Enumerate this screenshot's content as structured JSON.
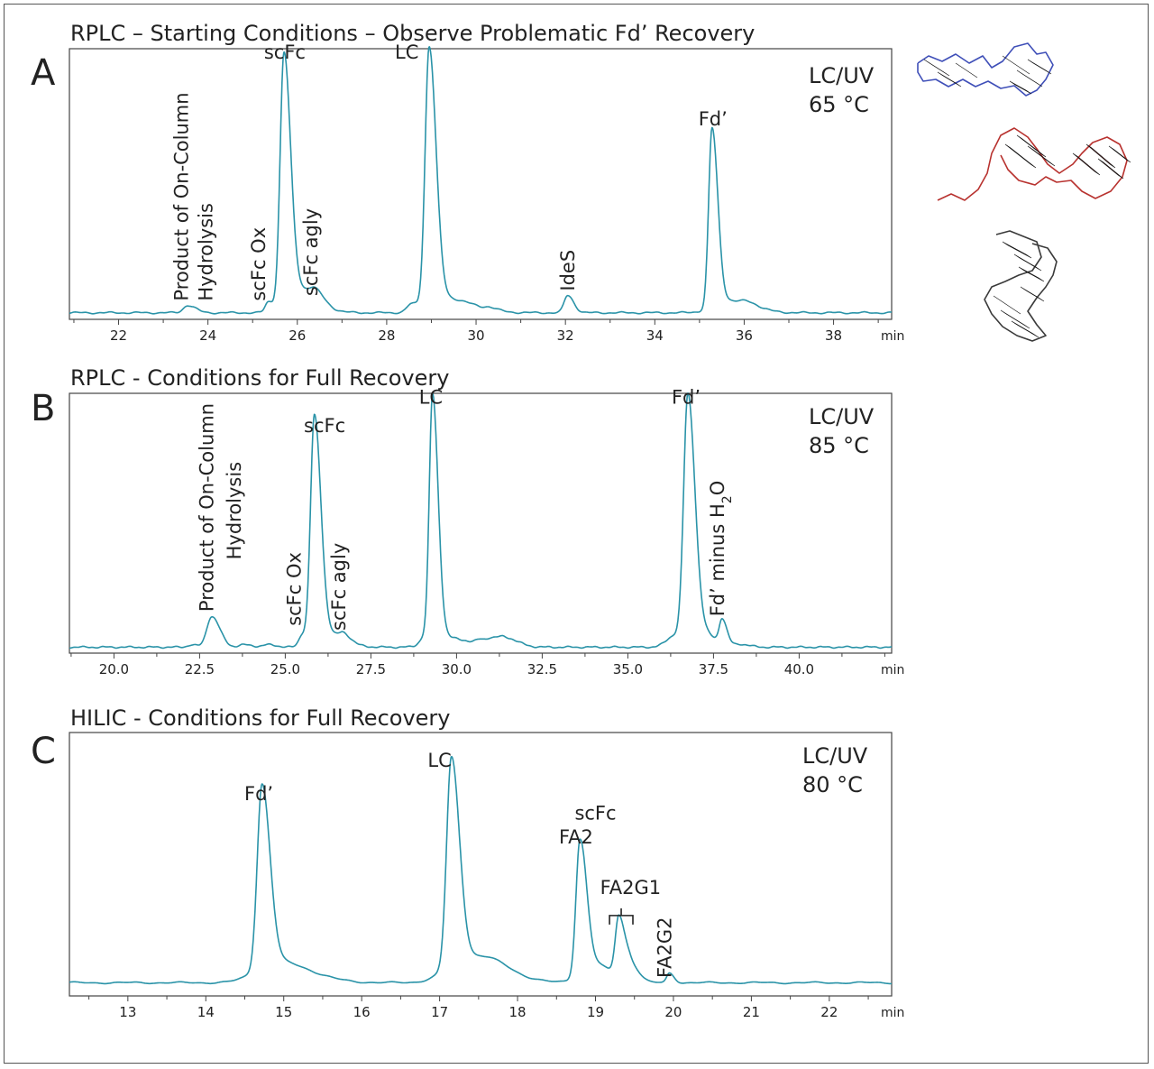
{
  "colors": {
    "trace": "#2a93a8",
    "axis": "#444444",
    "text": "#222222",
    "protein_blue": "#3f4fb8",
    "protein_red": "#b8322f",
    "protein_gray": "#3a3a3a"
  },
  "proteins": [
    {
      "name": "blue-ribbon"
    },
    {
      "name": "red-ribbon"
    },
    {
      "name": "gray-ribbon"
    }
  ],
  "chart_data": [
    {
      "type": "line",
      "panel": "A",
      "title": "RPLC – Starting Conditions – Observe Problematic Fd’ Recovery",
      "conditions": [
        "LC/UV",
        "65 °C"
      ],
      "xunit": "min",
      "xlim": [
        20.9,
        39.3
      ],
      "ylim": [
        0,
        100
      ],
      "ticks": [
        22,
        24,
        26,
        28,
        30,
        32,
        34,
        36,
        38
      ],
      "tick_labels": [
        "22",
        "24",
        "26",
        "28",
        "30",
        "32",
        "34",
        "36",
        "38"
      ],
      "baseline": 1.2,
      "peaks": [
        {
          "x": 23.55,
          "h": 3,
          "w": 0.1
        },
        {
          "x": 25.35,
          "h": 4,
          "w": 0.07
        },
        {
          "x": 25.7,
          "h": 100,
          "w": 0.085
        },
        {
          "x": 25.98,
          "h": 10,
          "w": 0.25
        },
        {
          "x": 26.4,
          "h": 4,
          "w": 0.12
        },
        {
          "x": 28.55,
          "h": 3,
          "w": 0.1
        },
        {
          "x": 28.95,
          "h": 104,
          "w": 0.09
        },
        {
          "x": 29.3,
          "h": 6,
          "w": 0.35
        },
        {
          "x": 30.3,
          "h": 1,
          "w": 0.1
        },
        {
          "x": 32.05,
          "h": 7,
          "w": 0.08
        },
        {
          "x": 35.28,
          "h": 72,
          "w": 0.075
        },
        {
          "x": 35.6,
          "h": 5,
          "w": 0.3
        },
        {
          "x": 36.1,
          "h": 1.5,
          "w": 0.15
        }
      ],
      "labels": [
        {
          "text": "scFc",
          "x": 25.72,
          "y": 104
        },
        {
          "text": "LC",
          "x": 28.45,
          "y": 104
        },
        {
          "text": "Fd’",
          "x": 35.3,
          "y": 77
        },
        {
          "text": "Product of On-Column",
          "x": 23.55,
          "y": 6,
          "rotate": true
        },
        {
          "text": "Hydrolysis",
          "x": 24.1,
          "y": 6,
          "rotate": true
        },
        {
          "text": "scFc Ox",
          "x": 25.28,
          "y": 6,
          "rotate": true
        },
        {
          "text": "scFc agly",
          "x": 26.45,
          "y": 8,
          "rotate": true
        },
        {
          "text": "IdeS",
          "x": 32.2,
          "y": 10,
          "rotate": true
        }
      ]
    },
    {
      "type": "line",
      "panel": "B",
      "title": "RPLC - Conditions for Full Recovery",
      "conditions": [
        "LC/UV",
        "85 °C"
      ],
      "xunit": "min",
      "xlim": [
        18.7,
        42.7
      ],
      "ylim": [
        0,
        100
      ],
      "ticks": [
        20.0,
        22.5,
        25.0,
        27.5,
        30.0,
        32.5,
        35.0,
        37.5,
        40.0
      ],
      "tick_labels": [
        "20.0",
        "22.5",
        "25.0",
        "27.5",
        "30.0",
        "32.5",
        "35.0",
        "37.5",
        "40.0"
      ],
      "baseline": 1.0,
      "peaks": [
        {
          "x": 22.25,
          "h": 1,
          "w": 0.1
        },
        {
          "x": 22.85,
          "h": 13,
          "w": 0.14
        },
        {
          "x": 23.8,
          "h": 1,
          "w": 0.15
        },
        {
          "x": 24.5,
          "h": 1,
          "w": 0.15
        },
        {
          "x": 25.5,
          "h": 5,
          "w": 0.1
        },
        {
          "x": 25.85,
          "h": 94,
          "w": 0.11
        },
        {
          "x": 26.15,
          "h": 6,
          "w": 0.3
        },
        {
          "x": 26.7,
          "h": 3,
          "w": 0.12
        },
        {
          "x": 29.1,
          "h": 4,
          "w": 0.15
        },
        {
          "x": 29.3,
          "h": 102,
          "w": 0.095
        },
        {
          "x": 29.7,
          "h": 4,
          "w": 0.4
        },
        {
          "x": 30.7,
          "h": 2,
          "w": 0.12
        },
        {
          "x": 31.0,
          "h": 2,
          "w": 0.12
        },
        {
          "x": 31.4,
          "h": 4,
          "w": 0.22
        },
        {
          "x": 36.4,
          "h": 5,
          "w": 0.25
        },
        {
          "x": 36.75,
          "h": 100,
          "w": 0.12
        },
        {
          "x": 37.05,
          "h": 6,
          "w": 0.3
        },
        {
          "x": 37.75,
          "h": 10,
          "w": 0.08
        },
        {
          "x": 38.3,
          "h": 1,
          "w": 0.15
        }
      ],
      "labels": [
        {
          "text": "LC",
          "x": 29.25,
          "y": 104
        },
        {
          "text": "scFc",
          "x": 26.15,
          "y": 92
        },
        {
          "text": "Fd’",
          "x": 36.7,
          "y": 104
        },
        {
          "text": "Product of On-Column",
          "x": 22.9,
          "y": 16,
          "rotate": true
        },
        {
          "text": "Hydrolysis",
          "x": 23.7,
          "y": 38,
          "rotate": true
        },
        {
          "text": "scFc Ox",
          "x": 25.45,
          "y": 10,
          "rotate": true
        },
        {
          "text": "scFc agly",
          "x": 26.75,
          "y": 8,
          "rotate": true
        },
        {
          "text": "Fd’ minus H",
          "x": 37.8,
          "y": 14,
          "rotate": true,
          "subscript": "2",
          "suffix": "O"
        }
      ]
    },
    {
      "type": "line",
      "panel": "C",
      "title": "HILIC - Conditions for Full Recovery",
      "conditions": [
        "LC/UV",
        "80 °C"
      ],
      "xunit": "min",
      "xlim": [
        12.25,
        22.8
      ],
      "ylim": [
        0,
        100
      ],
      "ticks": [
        13,
        14,
        15,
        16,
        17,
        18,
        19,
        20,
        21,
        22
      ],
      "tick_labels": [
        "13",
        "14",
        "15",
        "16",
        "17",
        "18",
        "19",
        "20",
        "21",
        "22"
      ],
      "baseline": 4.0,
      "peaks": [
        {
          "x": 14.72,
          "h": 76,
          "w": 0.06
        },
        {
          "x": 14.9,
          "h": 9,
          "w": 0.25
        },
        {
          "x": 17.15,
          "h": 86,
          "w": 0.06
        },
        {
          "x": 17.35,
          "h": 11,
          "w": 0.25
        },
        {
          "x": 17.7,
          "h": 2,
          "w": 0.15
        },
        {
          "x": 18.8,
          "h": 55,
          "w": 0.05
        },
        {
          "x": 18.95,
          "h": 8,
          "w": 0.15
        },
        {
          "x": 19.3,
          "h": 25,
          "w": 0.045
        },
        {
          "x": 19.45,
          "h": 7,
          "w": 0.06
        },
        {
          "x": 19.95,
          "h": 4,
          "w": 0.035
        }
      ],
      "labels": [
        {
          "text": "Fd’",
          "x": 14.68,
          "y": 80
        },
        {
          "text": "LC",
          "x": 17.0,
          "y": 94
        },
        {
          "text": "scFc",
          "x": 19.0,
          "y": 72
        },
        {
          "text": "FA2",
          "x": 18.75,
          "y": 62
        },
        {
          "text": "FA2G1",
          "x": 19.45,
          "y": 41
        },
        {
          "text": "FA2G2",
          "x": 19.97,
          "y": 6,
          "rotate": true
        }
      ],
      "bracket": {
        "x1": 19.18,
        "x2": 19.48,
        "y": 32
      }
    }
  ]
}
